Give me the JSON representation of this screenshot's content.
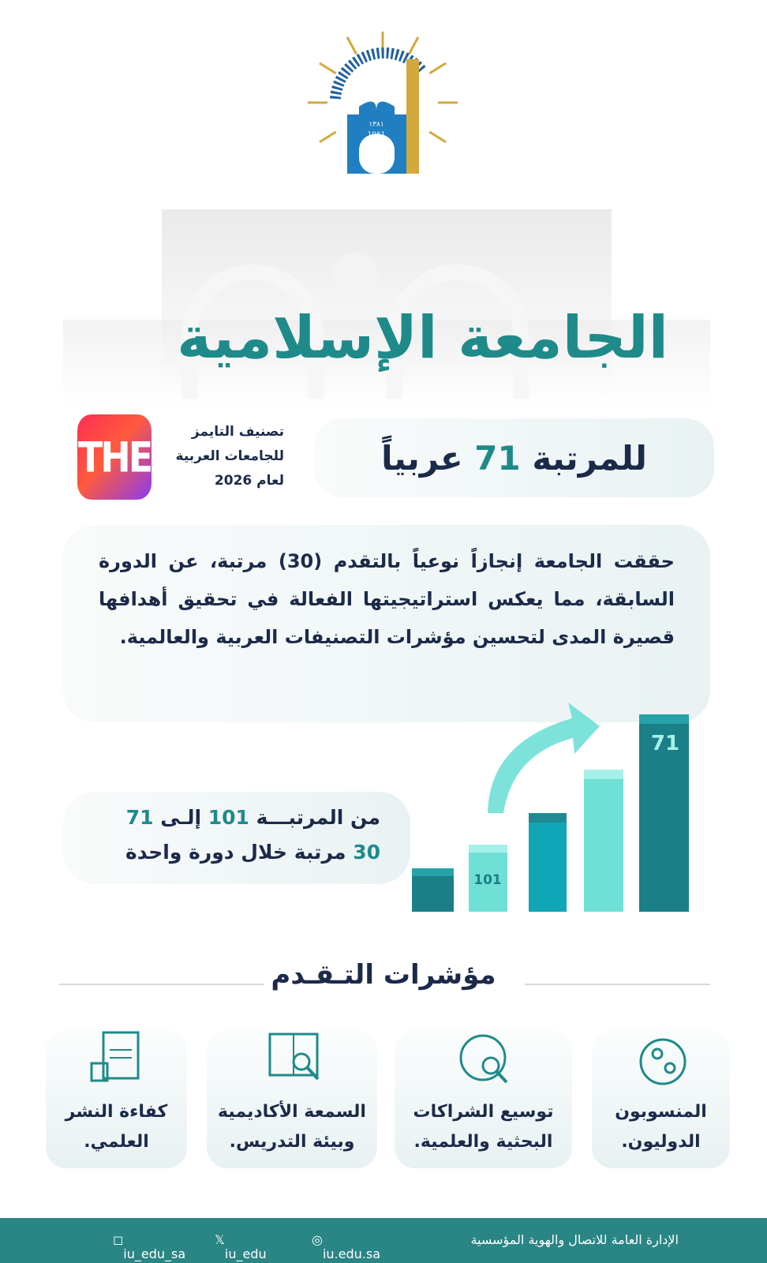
{
  "logo": {
    "hijri": "١٣٨١",
    "gregorian": "1961"
  },
  "header": {
    "title": "الجامعة الإسلامية"
  },
  "ranking": {
    "headline": {
      "before": "للمرتبة",
      "rank": "71",
      "after": "عربياً"
    },
    "badge": "THE",
    "source": [
      "تصنيف التايمز",
      "للجامعات العربية",
      "لعام 2026"
    ]
  },
  "summary": "حققت الجامعة إنجازاً نوعياً بالتقدم (30) مرتبة، عن الدورة السابقة، مما يعكس استراتيجيتها الفعالة في تحقيق أهدافها قصيرة المدى لتحسين مؤشرات التصنيفات العربية والعالمية.",
  "progress": {
    "line1": {
      "a": "من المرتبـــة",
      "from": "101",
      "b": "إلـى",
      "to": "71"
    },
    "line2": {
      "count": "30",
      "rest": "مرتبة خلال دورة واحدة"
    },
    "bar_labels": [
      "101",
      "71"
    ]
  },
  "indicators": {
    "title": "مؤشرات التـقـدم",
    "items": [
      [
        "المنسوبون",
        "الدوليون."
      ],
      [
        "توسيع الشراكات",
        "البحثية والعلمية."
      ],
      [
        "السمعة الأكاديمية",
        "وبيئة التدريس."
      ],
      [
        "كفاءة النشر",
        "العلمي."
      ]
    ]
  },
  "footer": {
    "department": "الإدارة العامة للاتصال والهوية المؤسسية",
    "website": "iu.edu.sa",
    "x": "iu_edu",
    "instagram": "iu_edu_sa"
  }
}
